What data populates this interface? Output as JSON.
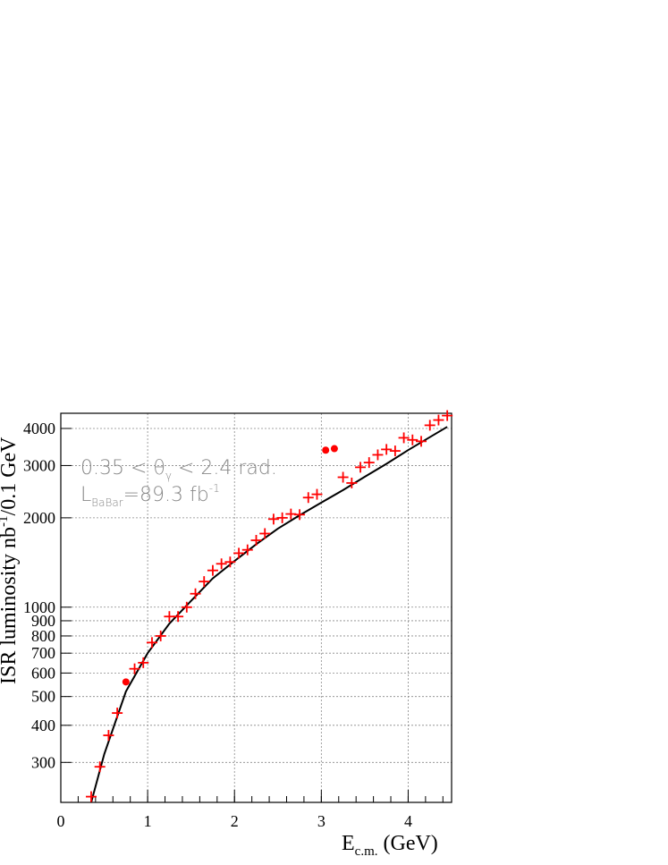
{
  "chart_data": {
    "type": "scatter",
    "x_scale": "linear",
    "y_scale": "log",
    "xlim": [
      0,
      4.5
    ],
    "ylim": [
      220,
      4500
    ],
    "grid": true,
    "x_ticks": [
      0,
      1,
      2,
      3,
      4
    ],
    "x_tick_labels": [
      "0",
      "1",
      "2",
      "3",
      "4"
    ],
    "y_ticks": [
      300,
      400,
      500,
      600,
      700,
      800,
      900,
      1000,
      2000,
      3000,
      4000
    ],
    "y_tick_labels": [
      "300",
      "400",
      "500",
      "600",
      "700",
      "800",
      "900",
      "1000",
      "2000",
      "3000",
      "4000"
    ],
    "xlabel_main": "E",
    "xlabel_sub": "c.m.",
    "xlabel_unit": " (GeV)",
    "ylabel_main": "ISR luminosity nb",
    "ylabel_sup": "-1",
    "ylabel_rest": "/0.1 GeV",
    "annotations": {
      "line1_a": "0.35 < θ",
      "line1_sub": "γ",
      "line1_b": " < 2.4 rad.",
      "line2_a": "L",
      "line2_sub": "BaBar",
      "line2_b": "=89.3 fb",
      "line2_sup": "-1"
    },
    "colors": {
      "data": "#ff0000",
      "fit": "#000000",
      "grid": "#888888",
      "annotation": "#888888"
    },
    "series": [
      {
        "marker": "cross",
        "x": [
          0.35,
          0.45,
          0.55,
          0.65,
          0.85,
          0.95,
          1.05,
          1.15,
          1.25,
          1.35,
          1.45,
          1.55,
          1.65,
          1.75,
          1.85,
          1.95,
          2.05,
          2.15,
          2.25,
          2.35,
          2.45,
          2.55,
          2.65,
          2.75,
          2.85,
          2.95,
          3.25,
          3.35,
          3.45,
          3.55,
          3.65,
          3.75,
          3.85,
          3.95,
          4.05,
          4.15,
          4.25,
          4.35,
          4.45
        ],
        "y": [
          230,
          290,
          370,
          440,
          620,
          650,
          760,
          800,
          930,
          930,
          1000,
          1110,
          1220,
          1330,
          1400,
          1420,
          1520,
          1560,
          1680,
          1770,
          1980,
          2000,
          2060,
          2050,
          2340,
          2400,
          2740,
          2620,
          2960,
          3070,
          3260,
          3400,
          3360,
          3720,
          3660,
          3620,
          4100,
          4270,
          4420
        ]
      },
      {
        "marker": "dot",
        "x": [
          0.75,
          3.05,
          3.15
        ],
        "y": [
          560,
          3380,
          3420
        ]
      }
    ],
    "fit_curve": {
      "x": [
        0.35,
        0.5,
        0.75,
        1.0,
        1.25,
        1.5,
        1.75,
        2.0,
        2.25,
        2.5,
        2.75,
        3.0,
        3.25,
        3.5,
        3.75,
        4.0,
        4.25,
        4.45
      ],
      "y": [
        220,
        320,
        520,
        700,
        880,
        1050,
        1250,
        1430,
        1630,
        1840,
        2040,
        2250,
        2480,
        2750,
        3040,
        3380,
        3740,
        4050
      ]
    }
  }
}
